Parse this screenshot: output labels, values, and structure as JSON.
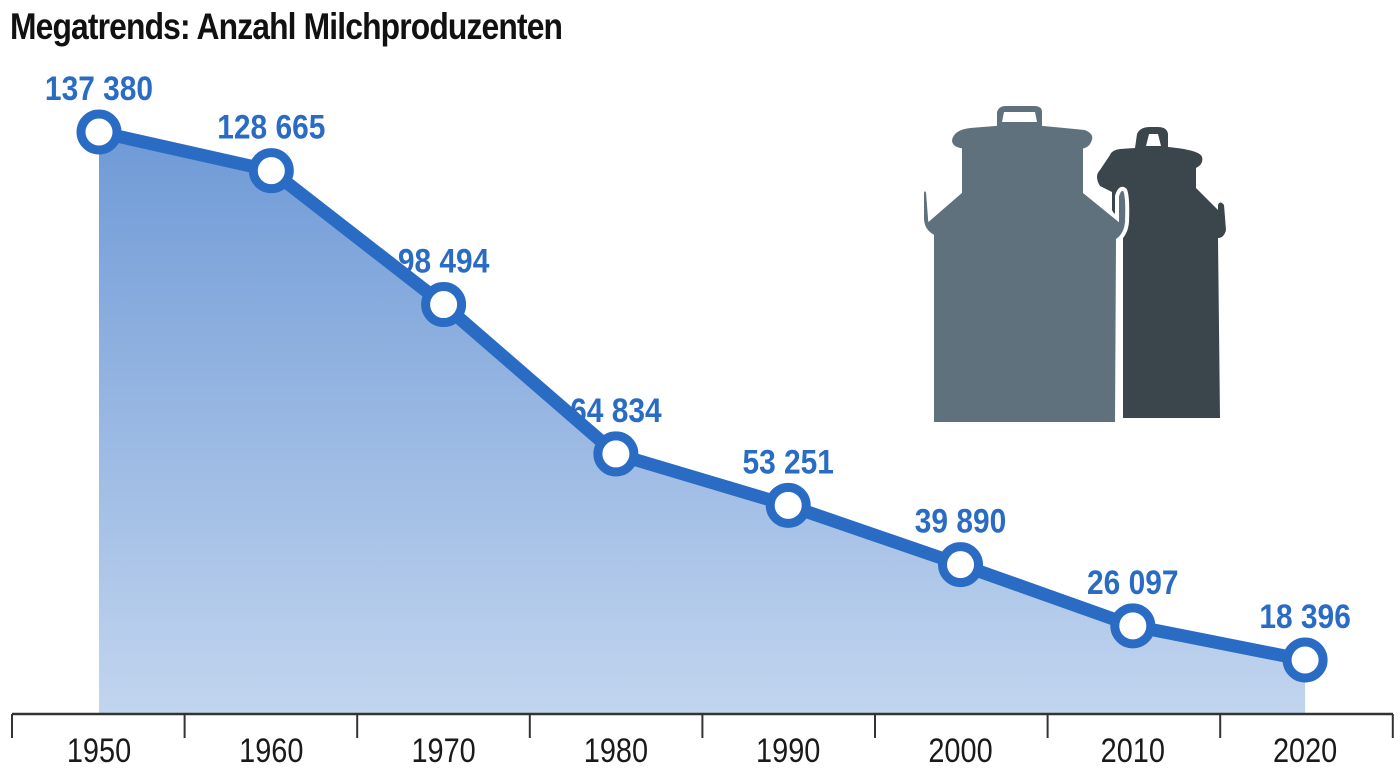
{
  "title": "Megatrends: Anzahl Milchproduzenten",
  "colors": {
    "line": "#2a6cc4",
    "fill_top": "#6f9ad6",
    "fill_bottom": "#c2d5ef",
    "can_large": "#60717e",
    "can_small": "#3b454c",
    "axis": "#333333"
  },
  "icons": [
    "milk-can-icon-large",
    "milk-can-icon-small"
  ],
  "chart_data": {
    "type": "area",
    "title": "Megatrends: Anzahl Milchproduzenten",
    "xlabel": "",
    "ylabel": "",
    "categories": [
      "1950",
      "1960",
      "1970",
      "1980",
      "1990",
      "2000",
      "2010",
      "2020"
    ],
    "values": [
      137380,
      128665,
      98494,
      64834,
      53251,
      39890,
      26097,
      18396
    ],
    "labels": [
      "137 380",
      "128 665",
      "98 494",
      "64 834",
      "53 251",
      "39 890",
      "26 097",
      "18 396"
    ],
    "grid": false,
    "legend": null
  }
}
